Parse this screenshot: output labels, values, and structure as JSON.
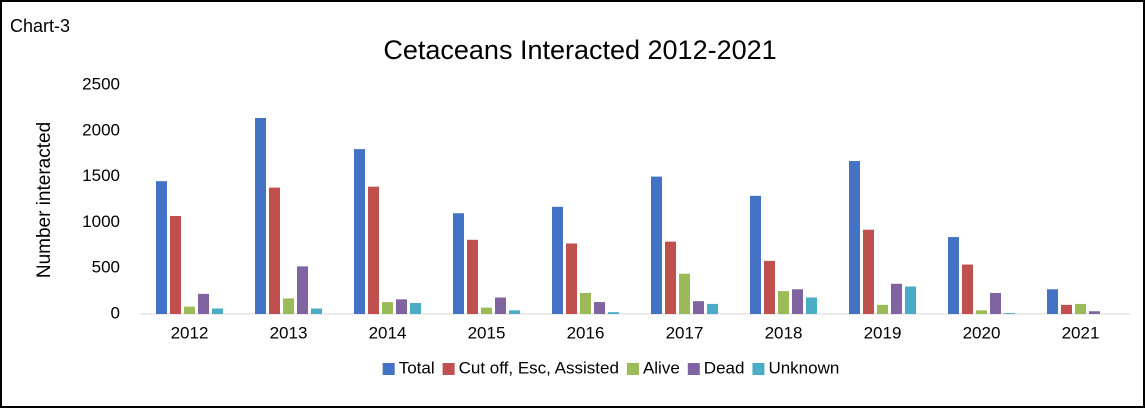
{
  "chart_data": {
    "type": "bar",
    "label": "Chart-3",
    "title": "Cetaceans Interacted  2012-2021",
    "y_label": "Number interacted",
    "categories": [
      "2012",
      "2013",
      "2014",
      "2015",
      "2016",
      "2017",
      "2018",
      "2019",
      "2020",
      "2021"
    ],
    "series": [
      {
        "name": "Total",
        "color": "#4472c4",
        "values": [
          1450,
          2140,
          1800,
          1100,
          1170,
          1500,
          1290,
          1670,
          840,
          270
        ]
      },
      {
        "name": "Cut off, Esc, Assisted",
        "color": "#c0504d",
        "values": [
          1070,
          1380,
          1390,
          810,
          770,
          790,
          580,
          920,
          540,
          100
        ]
      },
      {
        "name": "Alive",
        "color": "#9bbb59",
        "values": [
          80,
          170,
          130,
          70,
          230,
          440,
          250,
          100,
          40,
          110
        ]
      },
      {
        "name": "Dead",
        "color": "#8064a2",
        "values": [
          220,
          520,
          160,
          180,
          130,
          140,
          270,
          330,
          230,
          30
        ]
      },
      {
        "name": "Unknown",
        "color": "#4bacc6",
        "values": [
          60,
          60,
          120,
          40,
          20,
          110,
          180,
          300,
          10,
          0
        ]
      }
    ],
    "ylim": [
      0,
      2500
    ],
    "yticks": [
      0,
      500,
      1000,
      1500,
      2000,
      2500
    ],
    "grid": false,
    "legend": "bottom"
  }
}
